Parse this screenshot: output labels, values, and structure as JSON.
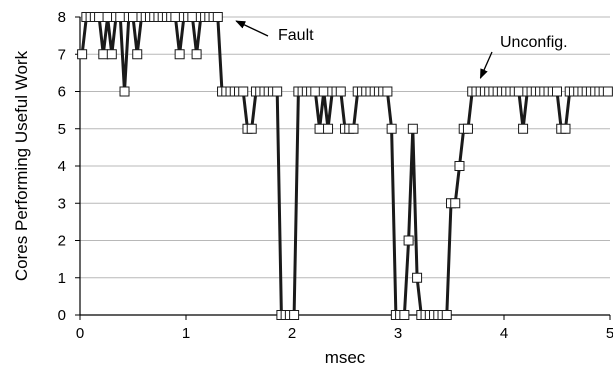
{
  "chart_data": {
    "type": "line",
    "xlabel": "msec",
    "ylabel": "Cores Performing Useful Work",
    "xlim": [
      0,
      5
    ],
    "ylim": [
      0,
      8
    ],
    "xticks": [
      "0",
      "1",
      "2",
      "3",
      "4",
      "5"
    ],
    "yticks": [
      "0",
      "1",
      "2",
      "3",
      "4",
      "5",
      "6",
      "7",
      "8"
    ],
    "grid": "horizontal",
    "line_color": "#1a1a1a",
    "marker": "open-square",
    "series": [
      {
        "x": [
          0.02,
          0.06,
          0.1,
          0.14,
          0.18,
          0.22,
          0.26,
          0.3,
          0.34,
          0.38,
          0.42,
          0.46,
          0.5,
          0.54,
          0.58,
          0.62,
          0.66,
          0.7,
          0.74,
          0.78,
          0.82,
          0.86,
          0.9,
          0.94,
          0.98,
          1.02,
          1.06,
          1.1,
          1.14,
          1.18,
          1.22,
          1.26,
          1.3,
          1.34,
          1.38,
          1.42,
          1.46,
          1.5,
          1.54,
          1.58,
          1.62,
          1.66,
          1.7,
          1.74,
          1.78,
          1.82,
          1.86,
          1.9,
          1.94,
          1.98,
          2.02,
          2.06,
          2.1,
          2.14,
          2.18,
          2.22,
          2.26,
          2.3,
          2.34,
          2.38,
          2.42,
          2.46,
          2.5,
          2.54,
          2.58,
          2.62,
          2.66,
          2.7,
          2.74,
          2.78,
          2.82,
          2.86,
          2.9,
          2.94,
          2.98,
          3.02,
          3.06,
          3.1,
          3.14,
          3.18,
          3.22,
          3.26,
          3.3,
          3.34,
          3.38,
          3.42,
          3.46,
          3.5,
          3.54,
          3.58,
          3.62,
          3.66,
          3.7,
          3.74,
          3.78,
          3.82,
          3.86,
          3.9,
          3.94,
          3.98,
          4.02,
          4.06,
          4.1,
          4.14,
          4.18,
          4.22,
          4.26,
          4.3,
          4.34,
          4.38,
          4.42,
          4.46,
          4.5,
          4.54,
          4.58,
          4.62,
          4.66,
          4.7,
          4.74,
          4.78,
          4.82,
          4.86,
          4.9,
          4.94,
          4.98
        ],
        "y": [
          7,
          8,
          8,
          8,
          8,
          7,
          8,
          7,
          8,
          8,
          6,
          8,
          8,
          7,
          8,
          8,
          8,
          8,
          8,
          8,
          8,
          8,
          8,
          7,
          8,
          8,
          8,
          7,
          8,
          8,
          8,
          8,
          8,
          6,
          6,
          6,
          6,
          6,
          6,
          5,
          5,
          6,
          6,
          6,
          6,
          6,
          6,
          0,
          0,
          0,
          0,
          6,
          6,
          6,
          6,
          6,
          5,
          6,
          5,
          6,
          6,
          6,
          5,
          5,
          5,
          6,
          6,
          6,
          6,
          6,
          6,
          6,
          6,
          5,
          0,
          0,
          0,
          2,
          5,
          1,
          0,
          0,
          0,
          0,
          0,
          0,
          0,
          3,
          3,
          4,
          5,
          5,
          6,
          6,
          6,
          6,
          6,
          6,
          6,
          6,
          6,
          6,
          6,
          6,
          5,
          6,
          6,
          6,
          6,
          6,
          6,
          6,
          6,
          5,
          5,
          6,
          6,
          6,
          6,
          6,
          6,
          6,
          6,
          6,
          6
        ]
      }
    ],
    "annotations": [
      {
        "text": "Fault",
        "x": 1.36,
        "y": 8,
        "arrow_to": [
          1.36,
          8
        ]
      },
      {
        "text": "Unconfig.",
        "x": 3.74,
        "y": 6.2,
        "arrow_to": [
          3.74,
          6.2
        ]
      }
    ]
  }
}
